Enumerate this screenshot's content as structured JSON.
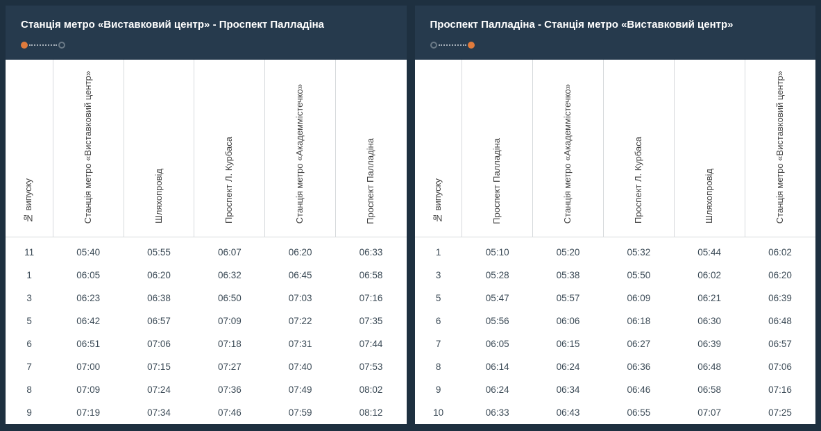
{
  "colors": {
    "page_bg": "#1e3040",
    "header_bg": "#263a4d",
    "header_text": "#ffffff",
    "cell_text": "#3b4a56",
    "border": "#d6d9dc",
    "dot_active": "#e07b3c",
    "dot_border": "#6b7a87",
    "dots_line": "#a7b1ba",
    "panel_bg": "#ffffff"
  },
  "left": {
    "title": "Станція метро «Виставковий центр» - Проспект Палладіна",
    "indicator": {
      "start_active": true,
      "end_active": false
    },
    "columns": [
      "№ випуску",
      "Станція метро «Виставковий центр»",
      "Шляхопровід",
      "Проспект Л. Курбаса",
      "Станція метро «Академмістечко»",
      "Проспект Палладіна"
    ],
    "rows": [
      [
        "11",
        "05:40",
        "05:55",
        "06:07",
        "06:20",
        "06:33"
      ],
      [
        "1",
        "06:05",
        "06:20",
        "06:32",
        "06:45",
        "06:58"
      ],
      [
        "3",
        "06:23",
        "06:38",
        "06:50",
        "07:03",
        "07:16"
      ],
      [
        "5",
        "06:42",
        "06:57",
        "07:09",
        "07:22",
        "07:35"
      ],
      [
        "6",
        "06:51",
        "07:06",
        "07:18",
        "07:31",
        "07:44"
      ],
      [
        "7",
        "07:00",
        "07:15",
        "07:27",
        "07:40",
        "07:53"
      ],
      [
        "8",
        "07:09",
        "07:24",
        "07:36",
        "07:49",
        "08:02"
      ],
      [
        "9",
        "07:19",
        "07:34",
        "07:46",
        "07:59",
        "08:12"
      ]
    ]
  },
  "right": {
    "title": "Проспект Палладіна - Станція метро «Виставковий центр»",
    "indicator": {
      "start_active": false,
      "end_active": true
    },
    "columns": [
      "№ випуску",
      "Проспект Палладіна",
      "Станція метро «Академмістечко»",
      "Проспект Л. Курбаса",
      "Шляхопровід",
      "Станція метро «Виставковий центр»"
    ],
    "rows": [
      [
        "1",
        "05:10",
        "05:20",
        "05:32",
        "05:44",
        "06:02"
      ],
      [
        "3",
        "05:28",
        "05:38",
        "05:50",
        "06:02",
        "06:20"
      ],
      [
        "5",
        "05:47",
        "05:57",
        "06:09",
        "06:21",
        "06:39"
      ],
      [
        "6",
        "05:56",
        "06:06",
        "06:18",
        "06:30",
        "06:48"
      ],
      [
        "7",
        "06:05",
        "06:15",
        "06:27",
        "06:39",
        "06:57"
      ],
      [
        "8",
        "06:14",
        "06:24",
        "06:36",
        "06:48",
        "07:06"
      ],
      [
        "9",
        "06:24",
        "06:34",
        "06:46",
        "06:58",
        "07:16"
      ],
      [
        "10",
        "06:33",
        "06:43",
        "06:55",
        "07:07",
        "07:25"
      ]
    ]
  }
}
